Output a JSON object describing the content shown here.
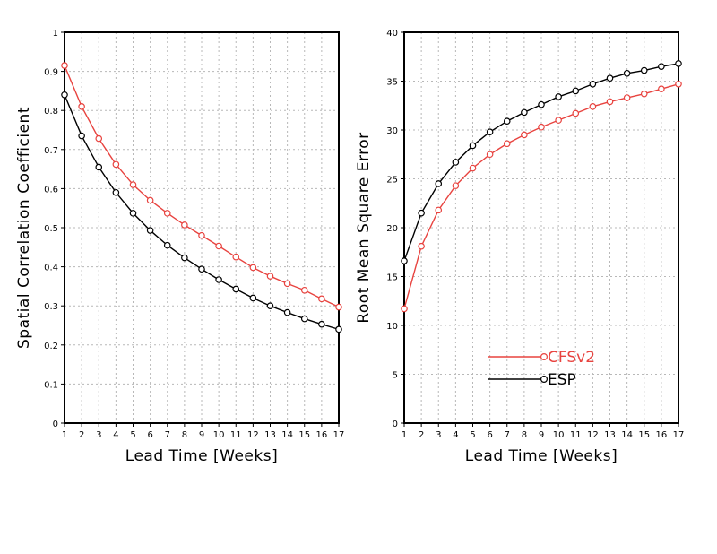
{
  "colors": {
    "cfsv2": "#e8433f",
    "esp": "#000000"
  },
  "chart_data": [
    {
      "type": "line",
      "title": "",
      "xlabel": "Lead Time [Weeks]",
      "ylabel": "Spatial Correlation Coefficient",
      "xlim": [
        1,
        17
      ],
      "ylim": [
        0,
        1
      ],
      "grid": true,
      "x": [
        1,
        2,
        3,
        4,
        5,
        6,
        7,
        8,
        9,
        10,
        11,
        12,
        13,
        14,
        15,
        16,
        17
      ],
      "xticks": [
        "1",
        "2",
        "3",
        "4",
        "5",
        "6",
        "7",
        "8",
        "9",
        "10",
        "11",
        "12",
        "13",
        "14",
        "15",
        "16",
        "17"
      ],
      "yticks": [
        "0",
        "0.1",
        "0.2",
        "0.3",
        "0.4",
        "0.5",
        "0.6",
        "0.7",
        "0.8",
        "0.9",
        "1"
      ],
      "series": [
        {
          "name": "CFSv2",
          "color": "#e8433f",
          "marker": "open-circle",
          "values": [
            0.915,
            0.81,
            0.728,
            0.662,
            0.61,
            0.57,
            0.537,
            0.507,
            0.48,
            0.453,
            0.425,
            0.398,
            0.376,
            0.357,
            0.34,
            0.318,
            0.297
          ]
        },
        {
          "name": "ESP",
          "color": "#000000",
          "marker": "open-circle",
          "values": [
            0.84,
            0.735,
            0.655,
            0.59,
            0.537,
            0.493,
            0.455,
            0.423,
            0.394,
            0.367,
            0.343,
            0.32,
            0.3,
            0.283,
            0.267,
            0.253,
            0.24
          ]
        }
      ]
    },
    {
      "type": "line",
      "title": "",
      "xlabel": "Lead Time [Weeks]",
      "ylabel": "Root Mean Square Error",
      "xlim": [
        1,
        17
      ],
      "ylim": [
        0,
        40
      ],
      "grid": true,
      "legend_position": "bottom-center",
      "x": [
        1,
        2,
        3,
        4,
        5,
        6,
        7,
        8,
        9,
        10,
        11,
        12,
        13,
        14,
        15,
        16,
        17
      ],
      "xticks": [
        "1",
        "2",
        "3",
        "4",
        "5",
        "6",
        "7",
        "8",
        "9",
        "10",
        "11",
        "12",
        "13",
        "14",
        "15",
        "16",
        "17"
      ],
      "yticks": [
        "0",
        "5",
        "10",
        "15",
        "20",
        "25",
        "30",
        "35",
        "40"
      ],
      "series": [
        {
          "name": "CFSv2",
          "color": "#e8433f",
          "marker": "open-circle",
          "values": [
            11.7,
            18.1,
            21.8,
            24.3,
            26.1,
            27.5,
            28.6,
            29.5,
            30.3,
            31.0,
            31.7,
            32.4,
            32.9,
            33.3,
            33.7,
            34.2,
            34.7
          ]
        },
        {
          "name": "ESP",
          "color": "#000000",
          "marker": "open-circle",
          "values": [
            16.6,
            21.5,
            24.5,
            26.7,
            28.4,
            29.8,
            30.9,
            31.8,
            32.6,
            33.4,
            34.0,
            34.7,
            35.3,
            35.8,
            36.1,
            36.5,
            36.8
          ]
        }
      ]
    }
  ]
}
